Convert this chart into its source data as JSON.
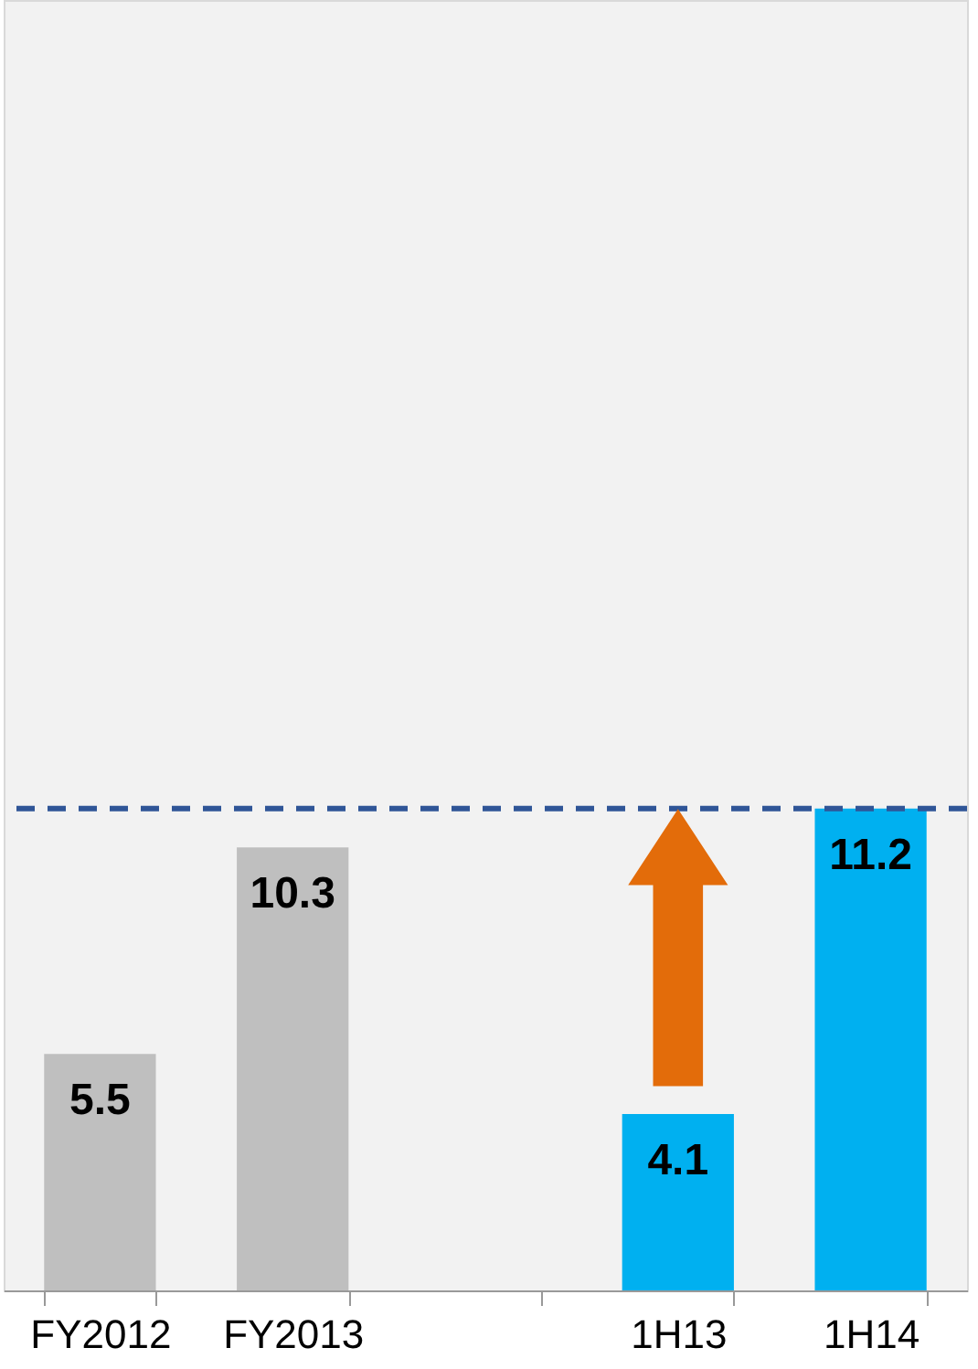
{
  "chart_data": {
    "type": "bar",
    "categories": [
      "FY2012",
      "FY2013",
      null,
      "1H13",
      "1H14"
    ],
    "values": [
      5.5,
      10.3,
      null,
      4.1,
      11.2
    ],
    "colors": [
      "#bfbfbf",
      "#bfbfbf",
      "#bfbfbf",
      "#00b0f0",
      "#00b0f0"
    ],
    "data_labels": true,
    "ylim": [
      0,
      30
    ],
    "tick_labels": "x",
    "grid": false,
    "ref_lines": [
      {
        "axis": "y",
        "value": 11.2,
        "label": null,
        "color": "#2f5597",
        "line_style": "dashed"
      }
    ]
  }
}
